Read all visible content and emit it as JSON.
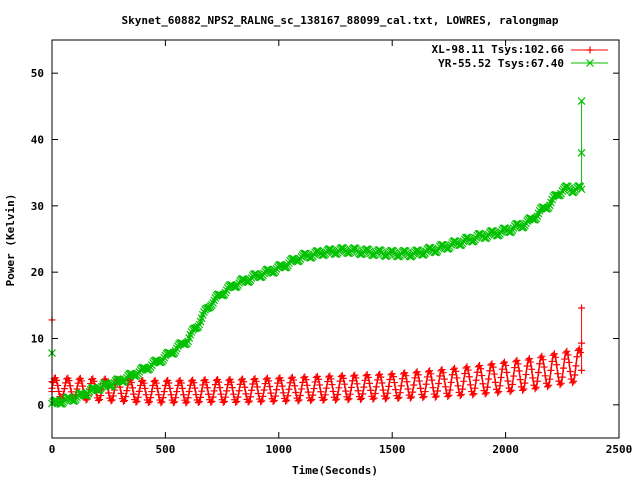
{
  "chart_data": {
    "type": "line",
    "title": "Skynet_60882_NPS2_RALNG_sc_138167_88099_cal.txt, LOWRES, ralongmap",
    "xlabel": "Time(Seconds)",
    "ylabel": "Power (Kelvin)",
    "xlim": [
      0,
      2500
    ],
    "ylim": [
      -5,
      55
    ],
    "xticks": [
      0,
      500,
      1000,
      1500,
      2000,
      2500
    ],
    "yticks": [
      0,
      10,
      20,
      30,
      40,
      50
    ],
    "legend_position": "top-right",
    "series": [
      {
        "name": "XL-98.11 Tsys:102.66",
        "color": "#ff0000",
        "marker": "plus",
        "baseline": {
          "x": [
            0,
            100,
            200,
            300,
            400,
            500,
            600,
            700,
            800,
            900,
            1000,
            1100,
            1200,
            1300,
            1400,
            1500,
            1600,
            1700,
            1800,
            1900,
            2000,
            2100,
            2200,
            2330
          ],
          "y": [
            2.5,
            2.4,
            2.3,
            2.2,
            2.0,
            2.0,
            2.0,
            2.1,
            2.1,
            2.2,
            2.3,
            2.4,
            2.5,
            2.6,
            2.7,
            2.8,
            3.0,
            3.2,
            3.5,
            3.8,
            4.2,
            4.6,
            5.2,
            6.0
          ]
        },
        "oscillation": {
          "period_s": 55,
          "amplitude": {
            "x": [
              0,
              1500,
              2000,
              2330
            ],
            "y": [
              1.6,
              1.9,
              2.3,
              2.5
            ]
          }
        },
        "special_points": [
          {
            "x": 0,
            "y": 12.8
          },
          {
            "x": 0,
            "y": 3.5
          },
          {
            "x": 0,
            "y": 2.0
          },
          {
            "x": 2335,
            "y": 14.6
          },
          {
            "x": 2335,
            "y": 9.3
          },
          {
            "x": 2335,
            "y": 5.2
          }
        ]
      },
      {
        "name": "YR-55.52 Tsys:67.40",
        "color": "#00c000",
        "marker": "cross",
        "baseline": {
          "x": [
            0,
            100,
            200,
            300,
            400,
            500,
            600,
            650,
            700,
            750,
            800,
            900,
            1000,
            1100,
            1200,
            1300,
            1400,
            1500,
            1600,
            1700,
            1800,
            1900,
            2000,
            2100,
            2150,
            2200,
            2250,
            2330
          ],
          "y": [
            0.2,
            1.0,
            2.5,
            3.6,
            5.2,
            7.2,
            9.8,
            12.5,
            15.3,
            16.8,
            18.0,
            19.4,
            20.6,
            22.3,
            23.0,
            23.3,
            23.0,
            22.8,
            22.8,
            23.5,
            24.5,
            25.5,
            26.2,
            27.5,
            29.0,
            30.5,
            32.5,
            32.5
          ]
        },
        "oscillation": {
          "period_s": 55,
          "amplitude": {
            "x": [
              0,
              2330
            ],
            "y": [
              0.4,
              0.5
            ]
          }
        },
        "special_points": [
          {
            "x": 0,
            "y": 7.8
          },
          {
            "x": 0,
            "y": 0.2
          },
          {
            "x": 2335,
            "y": 45.8
          },
          {
            "x": 2335,
            "y": 38.0
          },
          {
            "x": 2335,
            "y": 32.5
          }
        ]
      }
    ]
  }
}
